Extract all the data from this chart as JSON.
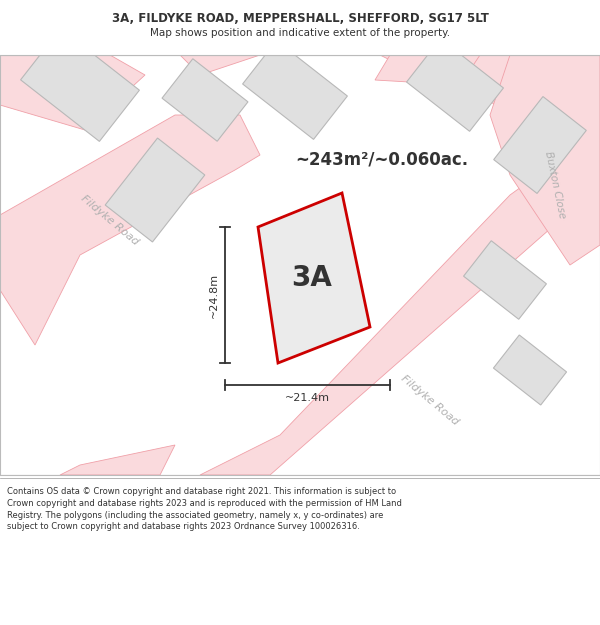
{
  "title_line1": "3A, FILDYKE ROAD, MEPPERSHALL, SHEFFORD, SG17 5LT",
  "title_line2": "Map shows position and indicative extent of the property.",
  "area_label": "~243m²/~0.060ac.",
  "plot_label": "3A",
  "dim_horizontal": "~21.4m",
  "dim_vertical": "~24.8m",
  "road_label_left": "Fildyke Road",
  "road_label_bottom": "Fildyke Road",
  "road_label_right": "Buxton Close",
  "footer_text": "Contains OS data © Crown copyright and database right 2021. This information is subject to Crown copyright and database rights 2023 and is reproduced with the permission of HM Land Registry. The polygons (including the associated geometry, namely x, y co-ordinates) are subject to Crown copyright and database rights 2023 Ordnance Survey 100026316.",
  "bg_color": "#ffffff",
  "map_bg": "#ffffff",
  "road_fill": "#fadadd",
  "road_edge": "#f0a0a8",
  "building_fill": "#e0e0e0",
  "building_edge": "#b8b8b8",
  "plot_fill": "#ebebeb",
  "plot_edge": "#cc0000",
  "dim_color": "#333333",
  "text_dark": "#333333",
  "road_text": "#b0b0b0"
}
